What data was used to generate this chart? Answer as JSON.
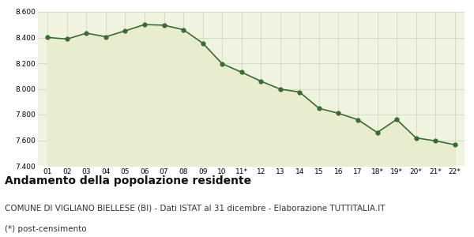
{
  "x_labels": [
    "01",
    "02",
    "03",
    "04",
    "05",
    "06",
    "07",
    "08",
    "09",
    "10",
    "11*",
    "12",
    "13",
    "14",
    "15",
    "16",
    "17",
    "18*",
    "19*",
    "20*",
    "21*",
    "22*"
  ],
  "values": [
    8401,
    8388,
    8434,
    8406,
    8452,
    8501,
    8496,
    8461,
    8356,
    8196,
    8130,
    8060,
    7998,
    7975,
    7848,
    7810,
    7760,
    7660,
    7762,
    7618,
    7595,
    7565
  ],
  "line_color": "#3a6b35",
  "fill_color": "#e8edcf",
  "marker_color": "#3a6b35",
  "bg_color": "#ffffff",
  "plot_bg_color": "#f0f3e0",
  "grid_color": "#d4d8c0",
  "ylim": [
    7400,
    8600
  ],
  "yticks": [
    7400,
    7600,
    7800,
    8000,
    8200,
    8400,
    8600
  ],
  "title": "Andamento della popolazione residente",
  "subtitle": "COMUNE DI VIGLIANO BIELLESE (BI) - Dati ISTAT al 31 dicembre - Elaborazione TUTTITALIA.IT",
  "footnote": "(*) post-censimento",
  "title_fontsize": 10,
  "subtitle_fontsize": 7.5,
  "footnote_fontsize": 7.5
}
